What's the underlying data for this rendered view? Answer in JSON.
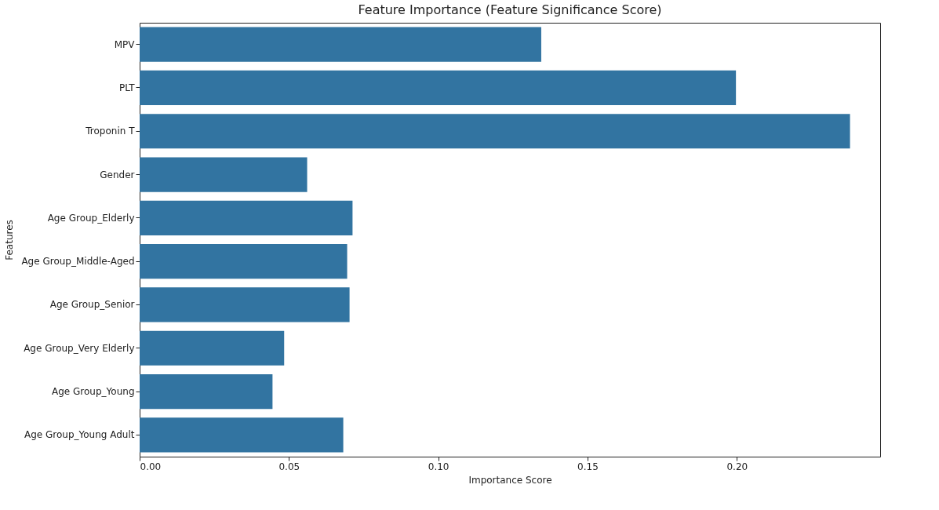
{
  "chart_data": {
    "type": "bar",
    "orientation": "horizontal",
    "title": "Feature Importance (Feature Significance Score)",
    "xlabel": "Importance Score",
    "ylabel": "Features",
    "categories": [
      "MPV",
      "PLT",
      "Troponin T",
      "Gender",
      "Age Group_Elderly",
      "Age Group_Middle-Aged",
      "Age Group_Senior",
      "Age Group_Very Elderly",
      "Age Group_Young",
      "Age Group_Young Adult"
    ],
    "values": [
      0.1345,
      0.1997,
      0.2379,
      0.0561,
      0.0713,
      0.0695,
      0.0703,
      0.0484,
      0.0445,
      0.0682
    ],
    "color": "#3274a1",
    "xlim": [
      0,
      0.248
    ],
    "xticks": [
      {
        "value": 0,
        "label": "0.00"
      },
      {
        "value": 0.05,
        "label": "0.05"
      },
      {
        "value": 0.1,
        "label": "0.10"
      },
      {
        "value": 0.15,
        "label": "0.15"
      },
      {
        "value": 0.2,
        "label": "0.20"
      }
    ],
    "grid": false
  }
}
